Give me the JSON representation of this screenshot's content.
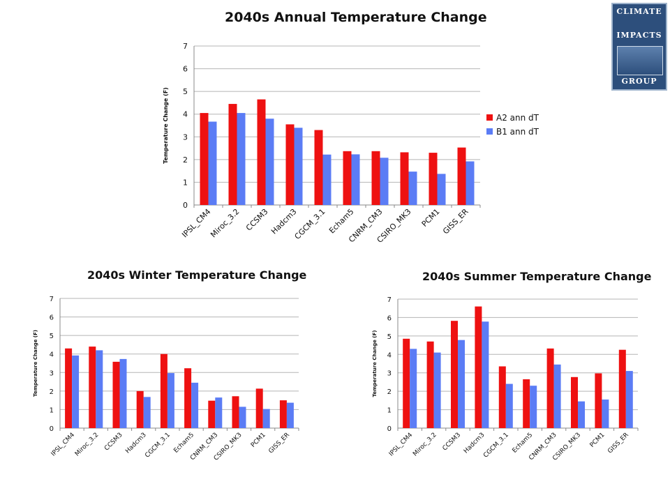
{
  "logo": {
    "line1": "CLIMATE",
    "line2": "IMPACTS",
    "line3": "GROUP"
  },
  "colors": {
    "A2": "#ee1111",
    "B1": "#5b7cf5",
    "grid": "#b5b5b5"
  },
  "chart_data": [
    {
      "id": "annual",
      "type": "bar",
      "title": "2040s Annual Temperature Change",
      "ylabel": "Temperature Change (F)",
      "xlabel": "",
      "ylim": [
        0,
        7
      ],
      "yticks": [
        0,
        1,
        2,
        3,
        4,
        5,
        6,
        7
      ],
      "grid": true,
      "legend": "right",
      "categories": [
        "IPSL_CM4",
        "Miroc_3.2",
        "CCSM3",
        "Hadcm3",
        "CGCM_3.1",
        "Echam5",
        "CNRM_CM3",
        "CSIRO_MK3",
        "PCM1",
        "GISS_ER"
      ],
      "series": [
        {
          "name": "A2 ann dT",
          "values": [
            4.05,
            4.45,
            4.65,
            3.55,
            3.3,
            2.37,
            2.37,
            2.32,
            2.3,
            2.53
          ]
        },
        {
          "name": "B1 ann dT",
          "values": [
            3.67,
            4.05,
            3.8,
            3.4,
            2.22,
            2.23,
            2.08,
            1.47,
            1.37,
            1.92
          ]
        }
      ]
    },
    {
      "id": "winter",
      "type": "bar",
      "title": "2040s Winter Temperature Change",
      "ylabel": "Temperature Change (F)",
      "xlabel": "",
      "ylim": [
        0,
        7
      ],
      "yticks": [
        0,
        1,
        2,
        3,
        4,
        5,
        6,
        7
      ],
      "grid": true,
      "legend": "none",
      "categories": [
        "IPSL_CM4",
        "Miroc_3.2",
        "CCSM3",
        "Hadcm3",
        "CGCM_3.1",
        "Echam5",
        "CNRM_CM3",
        "CSIRO_MK3",
        "PCM1",
        "GISS_ER"
      ],
      "series": [
        {
          "name": "A2",
          "values": [
            4.3,
            4.4,
            3.58,
            2.0,
            4.0,
            3.23,
            1.48,
            1.72,
            2.13,
            1.5
          ]
        },
        {
          "name": "B1",
          "values": [
            3.92,
            4.2,
            3.73,
            1.68,
            2.97,
            2.45,
            1.65,
            1.15,
            1.03,
            1.37
          ]
        }
      ]
    },
    {
      "id": "summer",
      "type": "bar",
      "title": "2040s Summer Temperature Change",
      "ylabel": "Temperature Change (F)",
      "xlabel": "",
      "ylim": [
        0,
        7
      ],
      "yticks": [
        0,
        1,
        2,
        3,
        4,
        5,
        6,
        7
      ],
      "grid": true,
      "legend": "none",
      "categories": [
        "IPSL_CM4",
        "Miroc_3.2",
        "CCSM3",
        "Hadcm3",
        "CGCM_3.1",
        "Echam5",
        "CNRM_CM3",
        "CSIRO_MK3",
        "PCM1",
        "GISS_ER"
      ],
      "series": [
        {
          "name": "A2",
          "values": [
            4.85,
            4.7,
            5.82,
            6.6,
            3.35,
            2.65,
            4.32,
            2.77,
            2.97,
            4.25
          ]
        },
        {
          "name": "B1",
          "values": [
            4.3,
            4.1,
            4.78,
            5.78,
            2.4,
            2.3,
            3.45,
            1.45,
            1.55,
            3.1
          ]
        }
      ]
    }
  ]
}
